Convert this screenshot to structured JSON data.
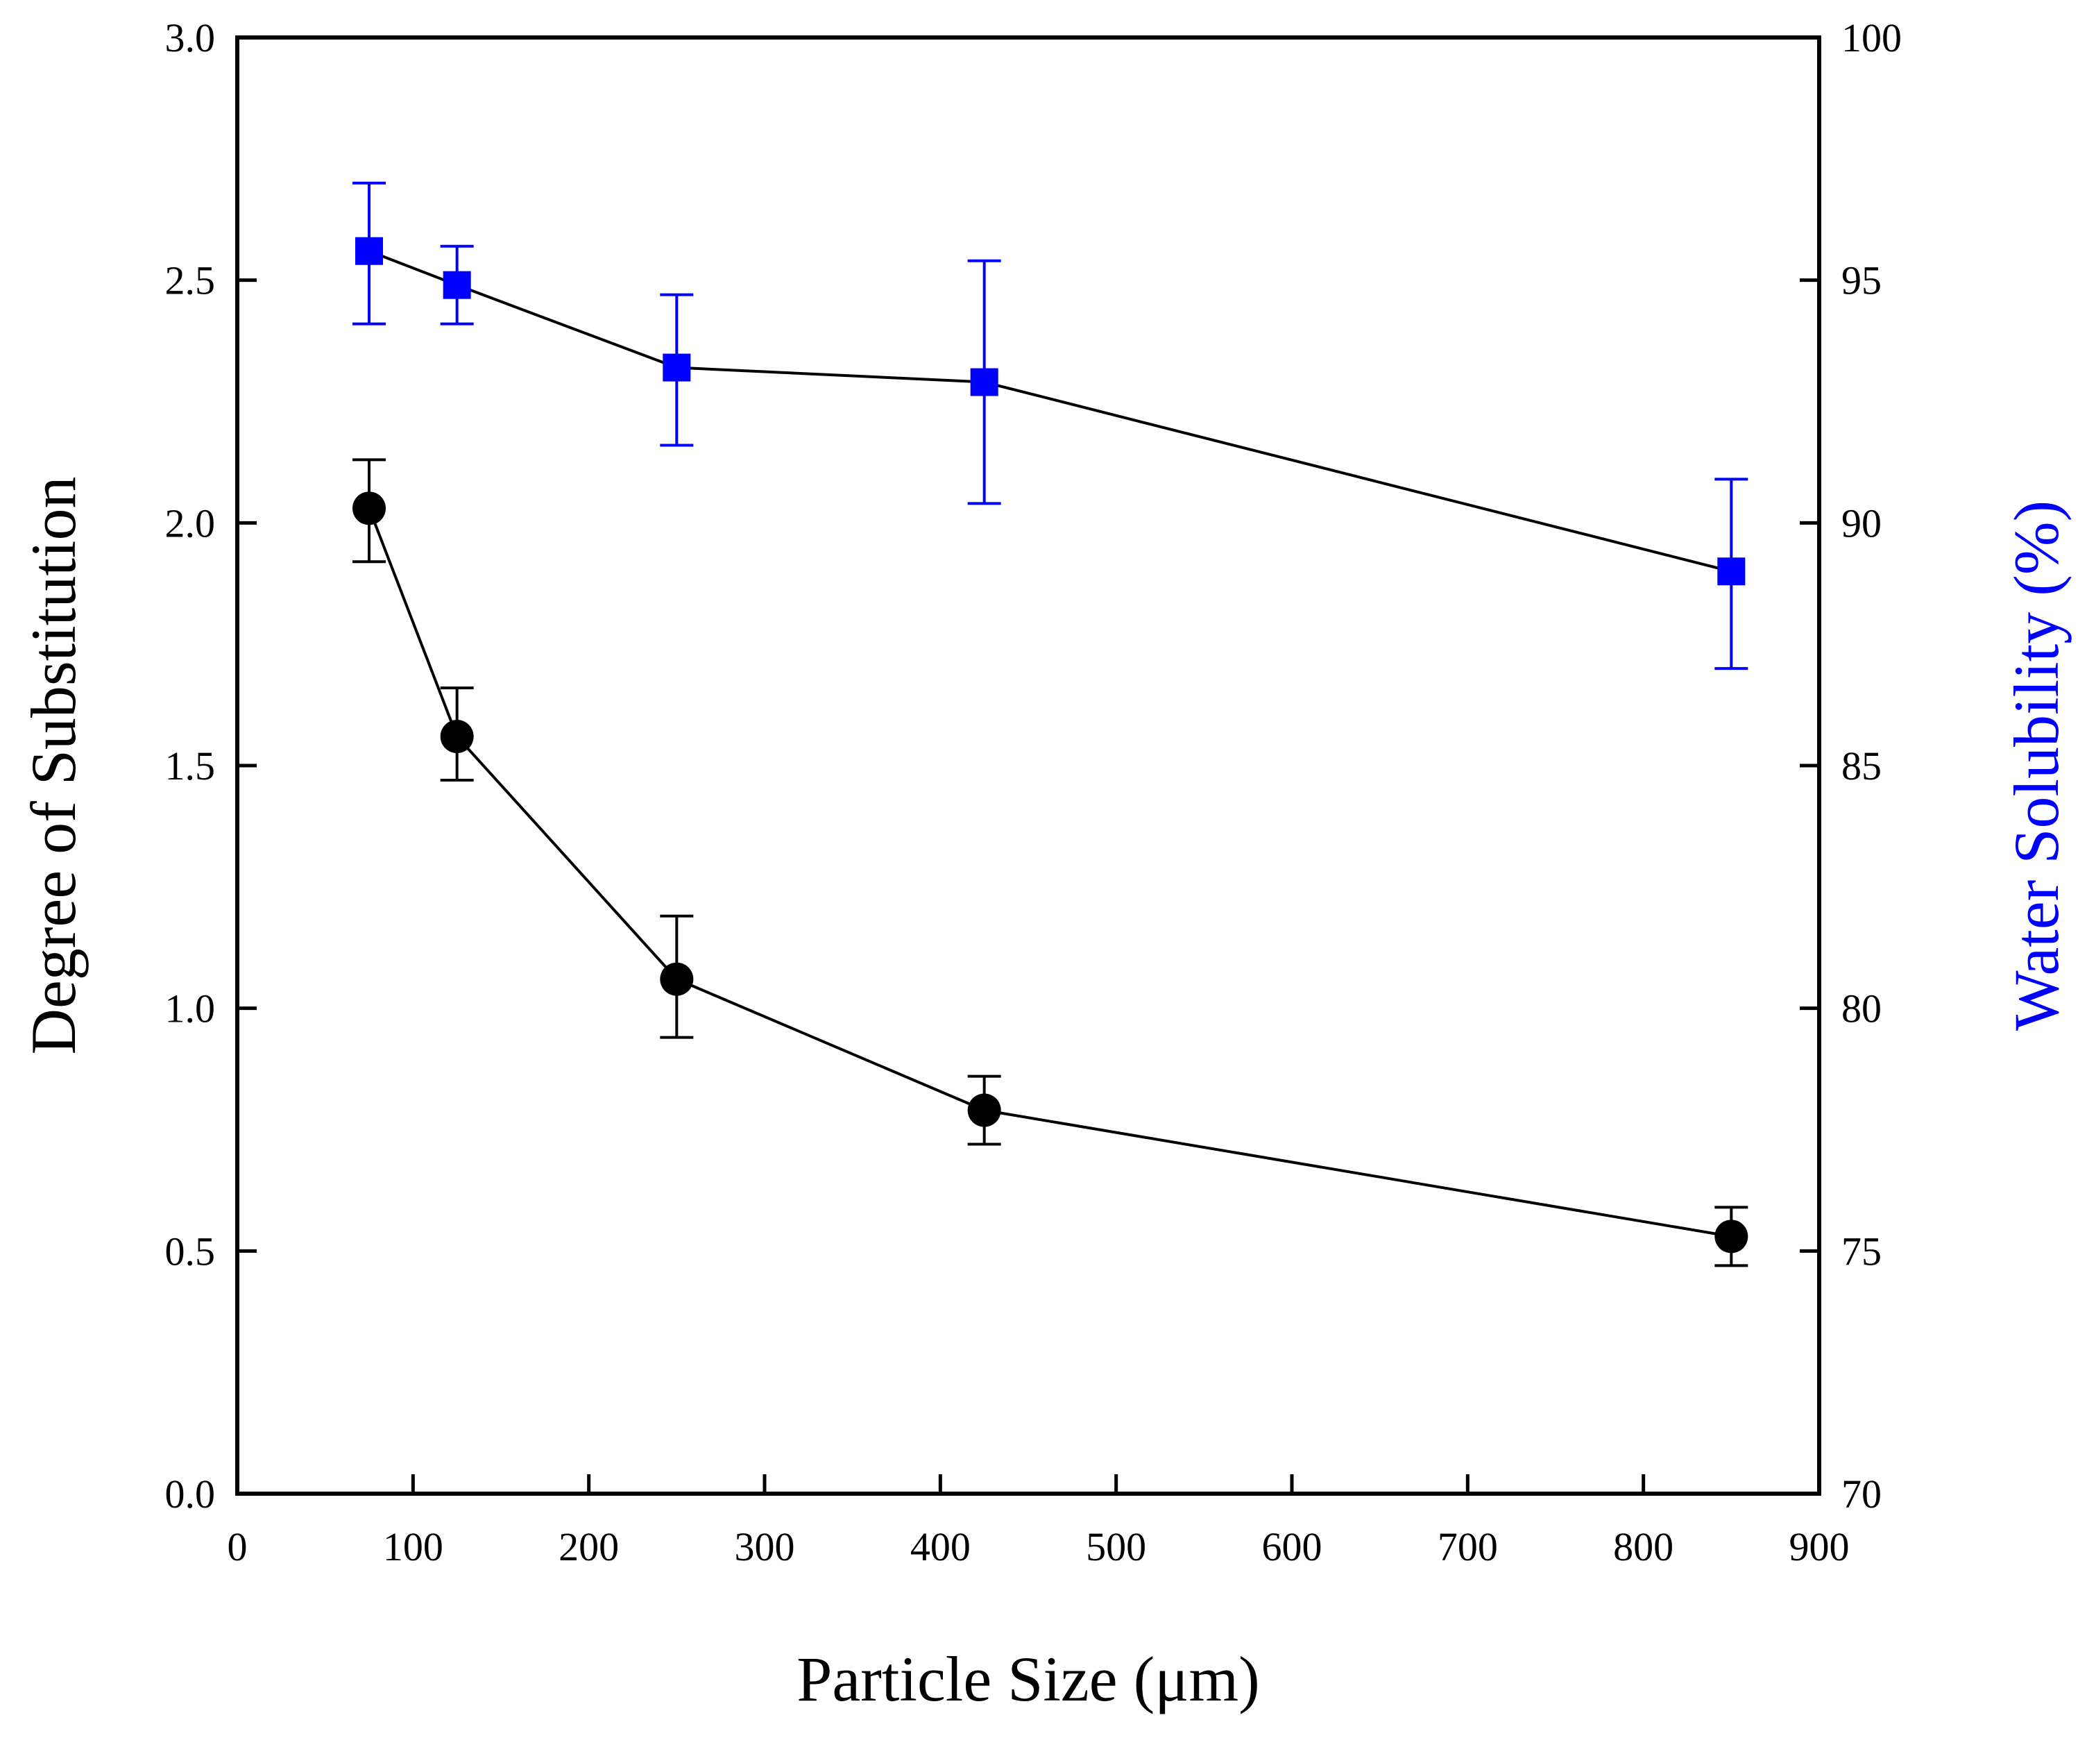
{
  "chart_data": {
    "type": "line",
    "xlabel": "Particle Size (μm)",
    "ylabel": "Degree of Substitution",
    "y2label": "Water Solubility (%)",
    "xlim": [
      0,
      900
    ],
    "ylim": [
      0.0,
      3.0
    ],
    "y2lim": [
      70,
      100
    ],
    "x_ticks": [
      0,
      100,
      200,
      300,
      400,
      500,
      600,
      700,
      800,
      900
    ],
    "y_ticks": [
      0.0,
      0.5,
      1.0,
      1.5,
      2.0,
      2.5,
      3.0
    ],
    "y2_ticks": [
      70,
      75,
      80,
      85,
      90,
      95,
      100
    ],
    "x_tick_labels": [
      "0",
      "100",
      "200",
      "300",
      "400",
      "500",
      "600",
      "700",
      "800",
      "900"
    ],
    "y_tick_labels": [
      "0.0",
      "0.5",
      "1.0",
      "1.5",
      "2.0",
      "2.5",
      "3.0"
    ],
    "y2_tick_labels": [
      "70",
      "75",
      "80",
      "85",
      "90",
      "95",
      "100"
    ],
    "grid": false,
    "series": [
      {
        "name": "Degree of Substitution",
        "axis": "left",
        "marker": "circle",
        "color": "#000000",
        "x": [
          75,
          125,
          250,
          425,
          850
        ],
        "y": [
          2.03,
          1.56,
          1.06,
          0.79,
          0.53
        ],
        "err_low": [
          1.92,
          1.47,
          0.94,
          0.72,
          0.47
        ],
        "err_high": [
          2.13,
          1.66,
          1.19,
          0.86,
          0.59
        ]
      },
      {
        "name": "Water Solubility (%)",
        "axis": "right",
        "marker": "square",
        "color": "#0000ff",
        "x": [
          75,
          125,
          250,
          425,
          850
        ],
        "y": [
          95.6,
          94.9,
          93.2,
          92.9,
          89.0
        ],
        "err_low": [
          94.1,
          94.1,
          91.6,
          90.4,
          87.0
        ],
        "err_high": [
          97.0,
          95.7,
          94.7,
          95.4,
          90.9
        ]
      }
    ]
  },
  "colors": {
    "axis": "#000000",
    "right_axis_label": "#0000ff",
    "circle_series": "#000000",
    "square_series": "#0000ff"
  }
}
